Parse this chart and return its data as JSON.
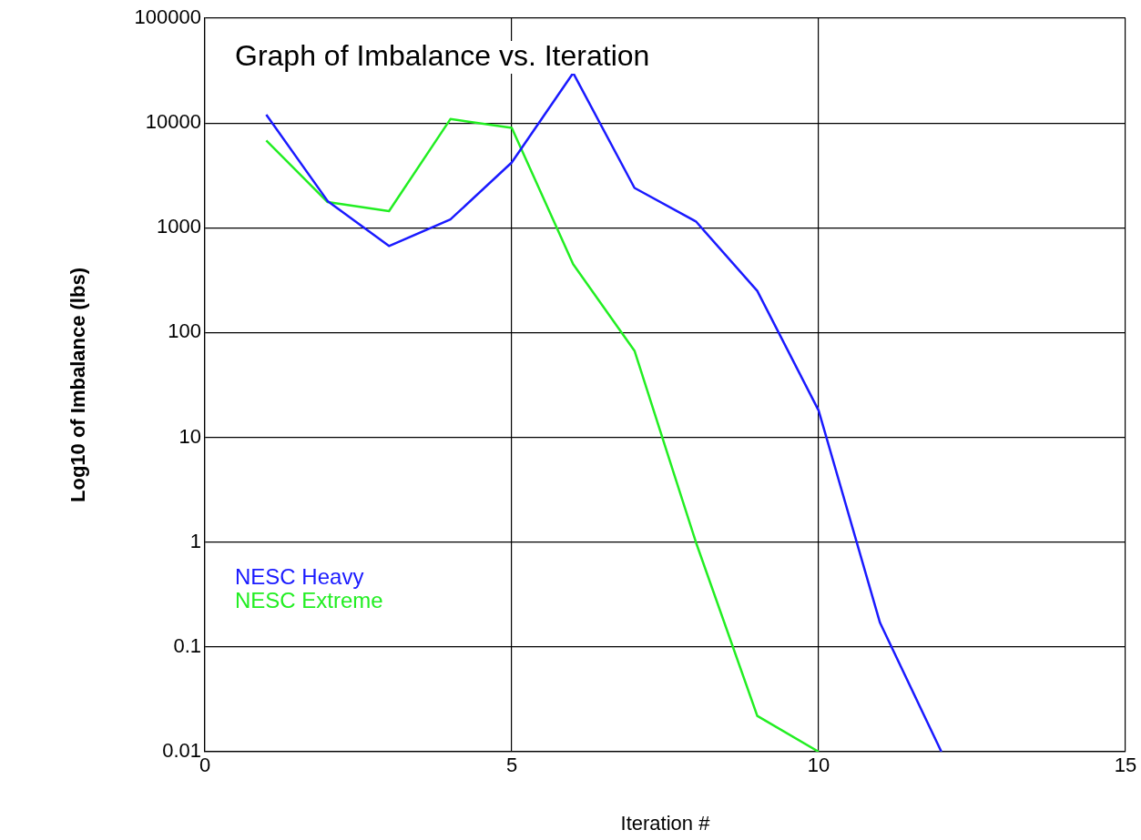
{
  "chart_data": {
    "type": "line",
    "title": "Graph of Imbalance vs. Iteration",
    "xlabel": "Iteration #",
    "ylabel": "Log10 of Imbalance (lbs)",
    "x": [
      1,
      2,
      3,
      4,
      5,
      6,
      7,
      8,
      9,
      10,
      11,
      12
    ],
    "series": [
      {
        "name": "NESC Heavy",
        "color": "#1a1aff",
        "values": [
          12000,
          1800,
          670,
          1200,
          4200,
          30000,
          2400,
          1150,
          250,
          18,
          0.17,
          0.01
        ]
      },
      {
        "name": "NESC Extreme",
        "color": "#22ee22",
        "x": [
          1,
          2,
          3,
          4,
          5,
          6,
          7,
          8,
          9,
          10
        ],
        "values": [
          6800,
          1760,
          1440,
          10900,
          9000,
          450,
          67,
          1,
          0.022,
          0.01
        ]
      }
    ],
    "xlim": [
      0,
      15
    ],
    "xticks": [
      0,
      5,
      10,
      15
    ],
    "ylim": [
      0.01,
      100000
    ],
    "yticks": [
      0.01,
      0.1,
      1,
      10,
      100,
      1000,
      10000,
      100000
    ],
    "log": "y",
    "grid": true,
    "legend": "bottom left",
    "marker": "none",
    "line_style": "solid"
  }
}
